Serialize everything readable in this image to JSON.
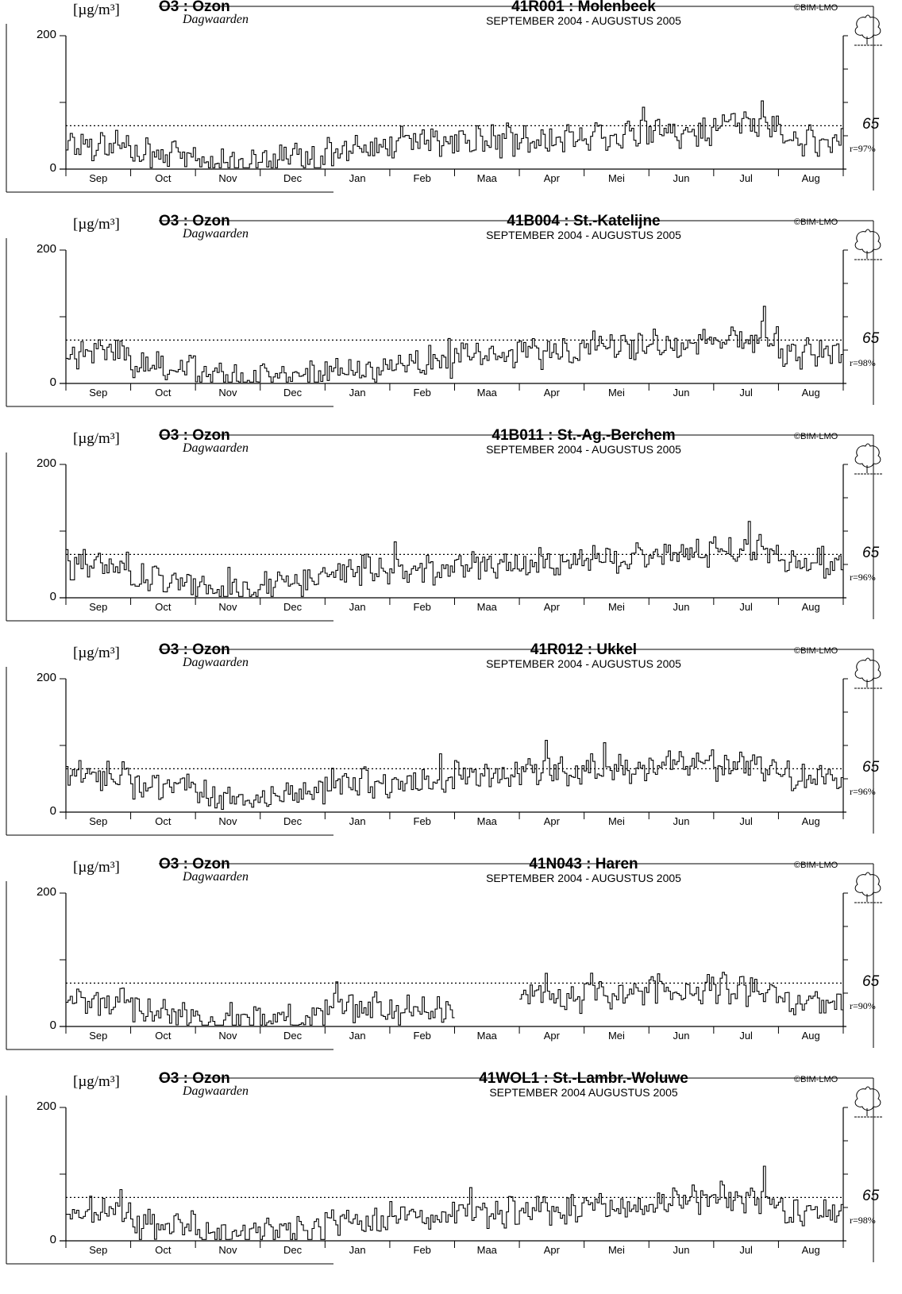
{
  "chart_data": [
    {
      "type": "line",
      "ylabel": "[µg/m³]",
      "pollutant": "O3 : Ozon",
      "subtitle": "Dagwaarden",
      "title": "41R001 : Molenbeek",
      "period": "SEPTEMBER 2004 - AUGUSTUS 2005",
      "copyright": "©BIM-LMO",
      "ylim": [
        0,
        200
      ],
      "yticks": [
        "200",
        "0"
      ],
      "threshold": 65,
      "threshold_label": "65",
      "coverage_label": "r=97%",
      "categories": [
        "Sep",
        "Oct",
        "Nov",
        "Dec",
        "Jan",
        "Feb",
        "Maa",
        "Apr",
        "Mei",
        "Jun",
        "Jul",
        "Aug"
      ],
      "series": [
        {
          "values": [
            38,
            22,
            8,
            14,
            28,
            40,
            42,
            44,
            52,
            54,
            70,
            42
          ]
        }
      ]
    },
    {
      "type": "line",
      "ylabel": "[µg/m³]",
      "pollutant": "O3 : Ozon",
      "subtitle": "Dagwaarden",
      "title": "41B004 : St.-Katelijne",
      "period": "SEPTEMBER 2004 - AUGUSTUS 2005",
      "copyright": "©BIM-LMO",
      "ylim": [
        0,
        200
      ],
      "yticks": [
        "200",
        "0"
      ],
      "threshold": 65,
      "threshold_label": "65",
      "coverage_label": "r=98%",
      "categories": [
        "Sep",
        "Oct",
        "Nov",
        "Dec",
        "Jan",
        "Feb",
        "Maa",
        "Apr",
        "Mei",
        "Jun",
        "Jul",
        "Aug"
      ],
      "series": [
        {
          "values": [
            45,
            25,
            8,
            10,
            22,
            32,
            40,
            46,
            56,
            62,
            68,
            44
          ]
        }
      ]
    },
    {
      "type": "line",
      "ylabel": "[µg/m³]",
      "pollutant": "O3 : Ozon",
      "subtitle": "Dagwaarden",
      "title": "41B011 : St.-Ag.-Berchem",
      "period": "SEPTEMBER 2004 - AUGUSTUS 2005",
      "copyright": "©BIM-LMO",
      "ylim": [
        0,
        200
      ],
      "yticks": [
        "200",
        "0"
      ],
      "threshold": 65,
      "threshold_label": "65",
      "coverage_label": "r=96%",
      "categories": [
        "Sep",
        "Oct",
        "Nov",
        "Dec",
        "Jan",
        "Feb",
        "Maa",
        "Apr",
        "Mei",
        "Jun",
        "Jul",
        "Aug"
      ],
      "series": [
        {
          "values": [
            48,
            28,
            10,
            22,
            40,
            42,
            50,
            52,
            60,
            66,
            72,
            50
          ]
        }
      ]
    },
    {
      "type": "line",
      "ylabel": "[µg/m³]",
      "pollutant": "O3 : Ozon",
      "subtitle": "Dagwaarden",
      "title": "41R012 : Ukkel",
      "period": "SEPTEMBER 2004 - AUGUSTUS 2005",
      "copyright": "©BIM-LMO",
      "ylim": [
        0,
        200
      ],
      "yticks": [
        "200",
        "0"
      ],
      "threshold": 65,
      "threshold_label": "65",
      "coverage_label": "r=96%",
      "categories": [
        "Sep",
        "Oct",
        "Nov",
        "Dec",
        "Jan",
        "Feb",
        "Maa",
        "Apr",
        "Mei",
        "Jun",
        "Jul",
        "Aug"
      ],
      "series": [
        {
          "values": [
            55,
            40,
            18,
            28,
            44,
            46,
            56,
            60,
            66,
            72,
            68,
            52
          ]
        }
      ]
    },
    {
      "type": "line",
      "ylabel": "[µg/m³]",
      "pollutant": "O3 : Ozon",
      "subtitle": "Dagwaarden",
      "title": "41N043 : Haren",
      "period": "SEPTEMBER 2004 - AUGUSTUS 2005",
      "copyright": "©BIM-LMO",
      "ylim": [
        0,
        200
      ],
      "yticks": [
        "200",
        "0"
      ],
      "threshold": 65,
      "threshold_label": "65",
      "coverage_label": "r=90%",
      "categories": [
        "Sep",
        "Oct",
        "Nov",
        "Dec",
        "Jan",
        "Feb",
        "Maa",
        "Apr",
        "Mei",
        "Jun",
        "Jul",
        "Aug"
      ],
      "series": [
        {
          "values": [
            35,
            20,
            8,
            12,
            30,
            22,
            null,
            44,
            50,
            56,
            56,
            40
          ]
        }
      ]
    },
    {
      "type": "line",
      "ylabel": "[µg/m³]",
      "pollutant": "O3 : Ozon",
      "subtitle": "Dagwaarden",
      "title": "41WOL1 : St.-Lambr.-Woluwe",
      "period": "SEPTEMBER 2004 AUGUSTUS 2005",
      "copyright": "©BIM-LMO",
      "ylim": [
        0,
        200
      ],
      "yticks": [
        "200",
        "0"
      ],
      "threshold": 65,
      "threshold_label": "65",
      "coverage_label": "r=98%",
      "categories": [
        "Sep",
        "Oct",
        "Nov",
        "Dec",
        "Jan",
        "Feb",
        "Maa",
        "Apr",
        "Mei",
        "Jun",
        "Jul",
        "Aug"
      ],
      "series": [
        {
          "values": [
            45,
            24,
            10,
            14,
            28,
            38,
            42,
            46,
            54,
            62,
            64,
            44
          ]
        }
      ]
    }
  ]
}
